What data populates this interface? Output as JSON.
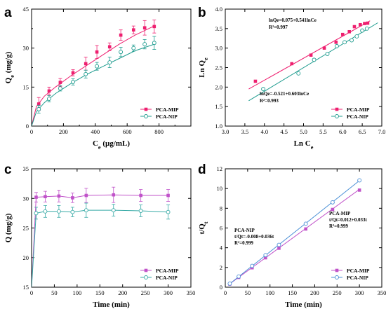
{
  "chart_data": [
    {
      "panel": "a",
      "type": "line",
      "xlabel": "C",
      "xlabel_sub": "e",
      "xlabel_unit": " (µg/mL)",
      "ylabel": "Q",
      "ylabel_sub": "e",
      "ylabel_unit": " (mg/g)",
      "xlim": [
        0,
        1000
      ],
      "ylim": [
        0,
        45
      ],
      "xticks": [
        0,
        200,
        400,
        600,
        800
      ],
      "yticks": [
        0,
        15,
        30,
        45
      ],
      "minor_xticks": [
        100,
        300,
        500,
        700,
        900
      ],
      "minor_yticks": [
        7.5,
        22.5,
        37.5
      ],
      "legend_position": "bottom-right",
      "series": [
        {
          "name": "PCA-MIP",
          "color": "#ee1f6f",
          "marker": "square-filled",
          "x": [
            0,
            45,
            110,
            180,
            260,
            340,
            410,
            490,
            560,
            640,
            710,
            770
          ],
          "y": [
            0,
            8.5,
            13.5,
            16.8,
            20.5,
            24,
            28.5,
            30.5,
            35,
            37,
            37.8,
            38.3
          ],
          "err": [
            0,
            2.5,
            1.5,
            1.5,
            1.2,
            2.5,
            2.5,
            1.5,
            2.0,
            1.5,
            2.8,
            2.5
          ],
          "fit": [
            [
              0,
              0
            ],
            [
              30,
              7.5
            ],
            [
              80,
              11.5
            ],
            [
              150,
              15
            ],
            [
              250,
              19.5
            ],
            [
              350,
              23.5
            ],
            [
              450,
              27.5
            ],
            [
              550,
              31.5
            ],
            [
              650,
              35
            ],
            [
              770,
              38.5
            ]
          ]
        },
        {
          "name": "PCA-NIP",
          "color": "#1f9c8f",
          "marker": "circle-open",
          "x": [
            0,
            45,
            110,
            180,
            260,
            340,
            410,
            490,
            560,
            640,
            710,
            770
          ],
          "y": [
            0,
            6.5,
            10.5,
            14.5,
            17,
            20,
            23,
            24.5,
            28.5,
            30,
            31.5,
            32
          ],
          "err": [
            0,
            1.5,
            1.2,
            1.0,
            1.2,
            1.5,
            1.5,
            2.0,
            1.8,
            1.2,
            1.8,
            2.5
          ],
          "fit": [
            [
              0,
              0
            ],
            [
              30,
              5.5
            ],
            [
              80,
              9
            ],
            [
              150,
              12.5
            ],
            [
              250,
              16.5
            ],
            [
              350,
              20
            ],
            [
              450,
              23
            ],
            [
              550,
              26
            ],
            [
              650,
              29
            ],
            [
              770,
              31.5
            ]
          ]
        }
      ]
    },
    {
      "panel": "b",
      "type": "scatter",
      "xlabel": "Ln C",
      "xlabel_sub": "e",
      "ylabel": "Ln Q",
      "ylabel_sub": "e",
      "xlim": [
        3.0,
        7.0
      ],
      "ylim": [
        1.0,
        4.0
      ],
      "xticks": [
        3.0,
        3.5,
        4.0,
        4.5,
        5.0,
        5.5,
        6.0,
        6.5,
        7.0
      ],
      "yticks": [
        1.0,
        1.5,
        2.0,
        2.5,
        3.0,
        3.5,
        4.0
      ],
      "legend_position": "bottom-right",
      "series": [
        {
          "name": "PCA-MIP",
          "color": "#ee1f6f",
          "marker": "square-filled",
          "x": [
            3.77,
            4.7,
            5.19,
            5.53,
            5.83,
            6.0,
            6.17,
            6.3,
            6.45,
            6.56,
            6.64
          ],
          "y": [
            2.15,
            2.6,
            2.82,
            3.0,
            3.15,
            3.35,
            3.42,
            3.55,
            3.6,
            3.63,
            3.64
          ],
          "fit": [
            [
              3.6,
              1.95
            ],
            [
              6.7,
              3.7
            ]
          ]
        },
        {
          "name": "PCA-NIP",
          "color": "#1f9c8f",
          "marker": "circle-open",
          "x": [
            3.97,
            4.87,
            5.27,
            5.61,
            5.85,
            6.05,
            6.23,
            6.36,
            6.5,
            6.62
          ],
          "y": [
            1.95,
            2.35,
            2.7,
            2.85,
            3.05,
            3.15,
            3.2,
            3.3,
            3.45,
            3.5
          ],
          "fit": [
            [
              3.6,
              1.65
            ],
            [
              6.9,
              3.65
            ]
          ]
        }
      ],
      "annotations": [
        {
          "lines": [
            "lnQe=0.075+0.541lnCe",
            "R²=0.997"
          ]
        },
        {
          "lines": [
            "lnQe=-0.521+0.603lnCe",
            "R²=0.993"
          ]
        }
      ]
    },
    {
      "panel": "c",
      "type": "line",
      "xlabel": "Time (min)",
      "ylabel": "Q (mg/g)",
      "xlim": [
        0,
        350
      ],
      "ylim": [
        15,
        35
      ],
      "xticks": [
        0,
        50,
        100,
        150,
        200,
        250,
        300,
        350
      ],
      "yticks": [
        15,
        20,
        25,
        30,
        35
      ],
      "legend_position": "bottom-right",
      "series": [
        {
          "name": "PCA-MIP",
          "color": "#c052c9",
          "marker": "square-filled",
          "x": [
            10,
            30,
            60,
            90,
            120,
            180,
            240,
            300
          ],
          "y": [
            30.2,
            30.3,
            30.4,
            30.1,
            30.5,
            30.6,
            30.5,
            30.5
          ],
          "err": [
            0.8,
            0.9,
            1.0,
            0.8,
            1.2,
            1.3,
            1.0,
            1.0
          ]
        },
        {
          "name": "PCA-NIP",
          "color": "#38aaa6",
          "marker": "circle-open",
          "x": [
            10,
            30,
            60,
            90,
            120,
            180,
            240,
            300
          ],
          "y": [
            27.5,
            27.8,
            27.8,
            27.7,
            28,
            28,
            27.9,
            27.7
          ],
          "err": [
            1.0,
            1.0,
            1.0,
            0.8,
            1.2,
            1.0,
            1.0,
            1.2
          ]
        }
      ]
    },
    {
      "panel": "d",
      "type": "scatter",
      "xlabel": "Time (min)",
      "ylabel": "t/Q",
      "ylabel_sub": "t",
      "xlim": [
        0,
        350
      ],
      "ylim": [
        0,
        12
      ],
      "xticks": [
        0,
        50,
        100,
        150,
        200,
        250,
        300,
        350
      ],
      "yticks": [
        0,
        2,
        4,
        6,
        8,
        10,
        12
      ],
      "legend_position": "bottom-right",
      "series": [
        {
          "name": "PCA-MIP",
          "color": "#c052c9",
          "marker": "square-filled",
          "x": [
            10,
            30,
            60,
            90,
            120,
            180,
            240,
            300
          ],
          "y": [
            0.32,
            0.99,
            1.97,
            2.98,
            3.95,
            5.9,
            7.88,
            9.84
          ],
          "fit": [
            [
              10,
              0.34
            ],
            [
              300,
              9.91
            ]
          ]
        },
        {
          "name": "PCA-NIP",
          "color": "#4a8fd6",
          "marker": "circle-open",
          "x": [
            10,
            30,
            60,
            90,
            120,
            180,
            240,
            300
          ],
          "y": [
            0.36,
            1.08,
            2.16,
            3.25,
            4.29,
            6.43,
            8.6,
            10.83
          ],
          "fit": [
            [
              10,
              0.35
            ],
            [
              300,
              10.8
            ]
          ]
        }
      ],
      "annotations": [
        {
          "lines": [
            "PCA-MIP",
            "t/Qt=0.012+0.033t",
            "R²=0.999"
          ]
        },
        {
          "lines": [
            "PCA-NIP",
            "t/Qt=-0.008+0.036t",
            "R²=0.999"
          ]
        }
      ]
    }
  ]
}
